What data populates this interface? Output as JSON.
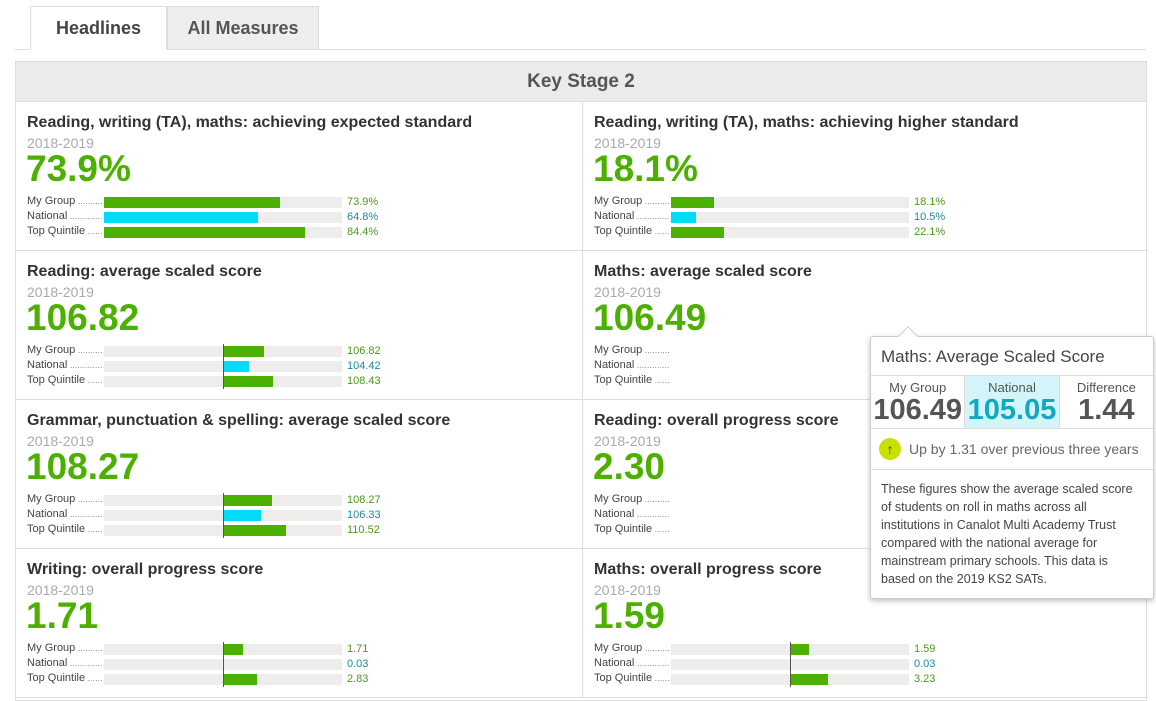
{
  "tabs": [
    {
      "label": "Headlines",
      "active": true
    },
    {
      "label": "All Measures",
      "active": false
    }
  ],
  "panel_title": "Key Stage 2",
  "row_labels": [
    "My Group",
    "National",
    "Top Quintile"
  ],
  "colors": {
    "group": "#4cb000",
    "national": "#00dcf6",
    "group_text": "#4a9a1a",
    "national_text": "#1a8aa0"
  },
  "cards": [
    {
      "title": "Reading, writing (TA), maths: achieving expected standard",
      "year": "2018-2019",
      "value": "73.9%",
      "scale": "percent",
      "bars": [
        {
          "v": 73.9,
          "t": "73.9%"
        },
        {
          "v": 64.8,
          "t": "64.8%"
        },
        {
          "v": 84.4,
          "t": "84.4%"
        }
      ]
    },
    {
      "title": "Reading, writing (TA), maths: achieving higher standard",
      "year": "2018-2019",
      "value": "18.1%",
      "scale": "percent",
      "bars": [
        {
          "v": 18.1,
          "t": "18.1%"
        },
        {
          "v": 10.5,
          "t": "10.5%"
        },
        {
          "v": 22.1,
          "t": "22.1%"
        }
      ]
    },
    {
      "title": "Reading: average scaled score",
      "year": "2018-2019",
      "value": "106.82",
      "scale": "scaled",
      "bars": [
        {
          "v": 106.82,
          "t": "106.82"
        },
        {
          "v": 104.42,
          "t": "104.42"
        },
        {
          "v": 108.43,
          "t": "108.43"
        }
      ]
    },
    {
      "title": "Maths: average scaled score",
      "year": "2018-2019",
      "value": "106.49",
      "scale": "scaled",
      "bars": null
    },
    {
      "title": "Grammar, punctuation & spelling: average scaled score",
      "year": "2018-2019",
      "value": "108.27",
      "scale": "scaled",
      "bars": [
        {
          "v": 108.27,
          "t": "108.27"
        },
        {
          "v": 106.33,
          "t": "106.33"
        },
        {
          "v": 110.52,
          "t": "110.52"
        }
      ]
    },
    {
      "title": "Reading: overall progress score",
      "year": "2018-2019",
      "value": "2.30",
      "scale": "progress",
      "bars": null
    },
    {
      "title": "Writing: overall progress score",
      "year": "2018-2019",
      "value": "1.71",
      "scale": "progress",
      "bars": [
        {
          "v": 1.71,
          "t": "1.71"
        },
        {
          "v": 0.03,
          "t": "0.03"
        },
        {
          "v": 2.83,
          "t": "2.83"
        }
      ]
    },
    {
      "title": "Maths: overall progress score",
      "year": "2018-2019",
      "value": "1.59",
      "scale": "progress",
      "bars": [
        {
          "v": 1.59,
          "t": "1.59"
        },
        {
          "v": 0.03,
          "t": "0.03"
        },
        {
          "v": 3.23,
          "t": "3.23"
        }
      ]
    }
  ],
  "tooltip": {
    "title": "Maths: Average Scaled Score",
    "cols": [
      {
        "label": "My Group",
        "value": "106.49"
      },
      {
        "label": "National",
        "value": "105.05"
      },
      {
        "label": "Difference",
        "value": "1.44"
      }
    ],
    "trend": "Up by 1.31 over previous three years",
    "description": "These figures show the average scaled score of students on roll in maths across all institutions in Canalot Multi Academy Trust compared with the national average for mainstream primary schools. This data is based on the 2019 KS2 SATs."
  }
}
